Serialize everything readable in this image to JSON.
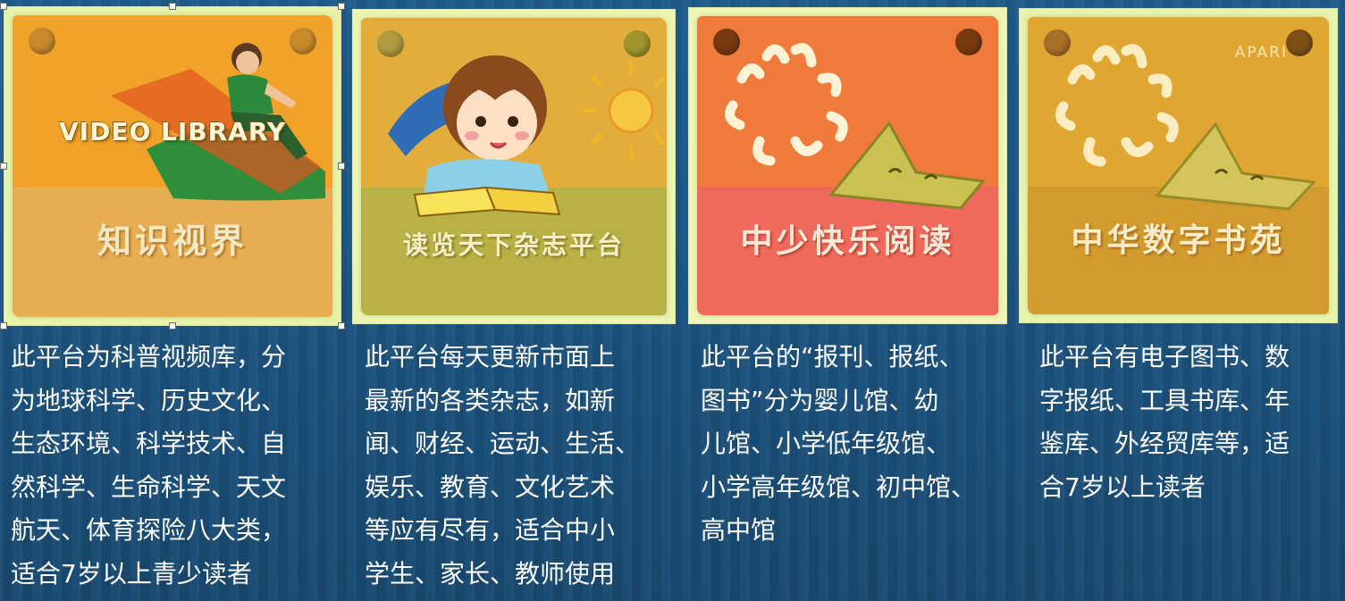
{
  "cards": [
    {
      "title": "知识视界",
      "banner": "VIDEO LIBRARY",
      "description": "此平台为科普视频库，分\n为地球科学、历史文化、\n生态环境、科学技术、自\n然科学、生命科学、天文\n航天、体育探险八大类，\n适合7岁以上青少读者"
    },
    {
      "title": "读览天下杂志平台",
      "description": "此平台每天更新市面上\n最新的各类杂志，如新\n闻、财经、运动、生活、\n娱乐、教育、文化艺术\n等应有尽有，适合中小\n学生、家长、教师使用"
    },
    {
      "title": "中少快乐阅读",
      "description": "此平台的“报刊、报纸、\n图书”分为婴儿馆、幼\n儿馆、小学低年级馆、\n小学高年级馆、初中馆、\n高中馆"
    },
    {
      "title": "中华数字书苑",
      "watermark": "APARI",
      "description": "此平台有电子图书、数\n字报纸、工具书库、年\n鉴库、外经贸库等，适\n合7岁以上读者"
    }
  ],
  "colors": {
    "background": "#1d5683",
    "text": "#ffffff",
    "frame": "#e8f3a8"
  },
  "icons": [
    "pin-icon",
    "child-icon",
    "sun-icon",
    "sunburst-icon",
    "star-icon",
    "book-icon"
  ]
}
